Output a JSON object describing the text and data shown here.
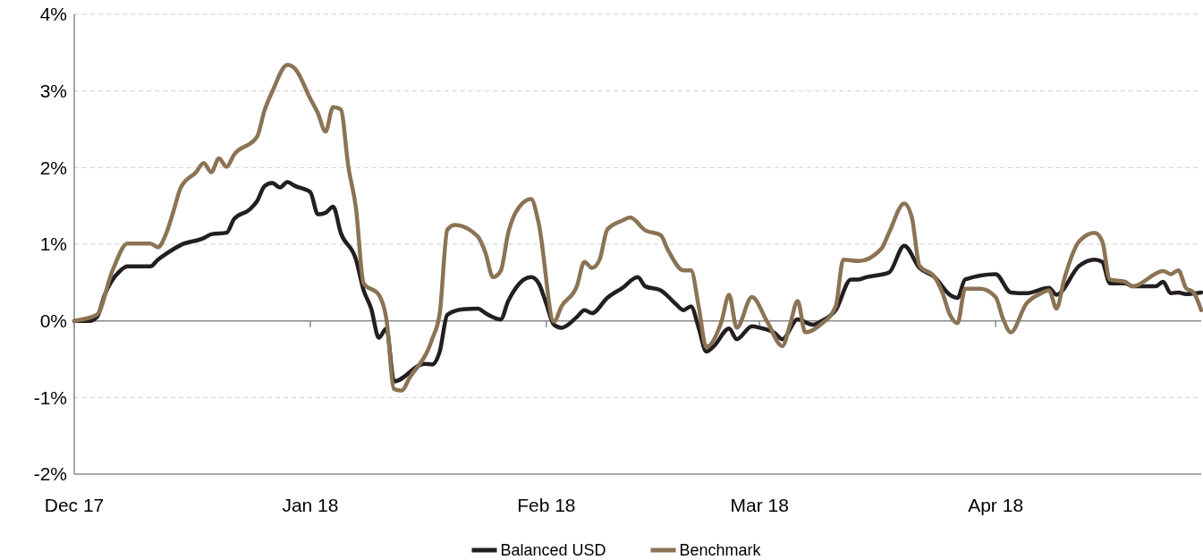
{
  "chart_data": {
    "type": "line",
    "xlim": [
      "2017-12-01",
      "2018-04-28"
    ],
    "xticks": [
      {
        "value": "2017-12-01",
        "label": "Dec 17"
      },
      {
        "value": "2018-01-01",
        "label": "Jan 18"
      },
      {
        "value": "2018-02-01",
        "label": "Feb 18"
      },
      {
        "value": "2018-03-01",
        "label": "Mar 18"
      },
      {
        "value": "2018-04-01",
        "label": "Apr 18"
      }
    ],
    "ylim": [
      -2,
      4
    ],
    "yticks": [
      {
        "value": -2,
        "label": "-2%"
      },
      {
        "value": -1,
        "label": "-1%"
      },
      {
        "value": 0,
        "label": "0%"
      },
      {
        "value": 1,
        "label": "1%"
      },
      {
        "value": 2,
        "label": "2%"
      },
      {
        "value": 3,
        "label": "3%"
      },
      {
        "value": 4,
        "label": "4%"
      }
    ],
    "grid": "y",
    "legend": "bottom",
    "marker": "none",
    "line_style": "solid",
    "series": [
      {
        "name": "Balanced USD",
        "color": "#231f20",
        "x": [
          "2017-12-01",
          "2017-12-03",
          "2017-12-04",
          "2017-12-05",
          "2017-12-07",
          "2017-12-08",
          "2017-12-11",
          "2017-12-12",
          "2017-12-13",
          "2017-12-15",
          "2017-12-18",
          "2017-12-19",
          "2017-12-21",
          "2017-12-22",
          "2017-12-24",
          "2017-12-25",
          "2017-12-26",
          "2017-12-27",
          "2017-12-28",
          "2017-12-29",
          "2017-12-30",
          "2018-01-01",
          "2018-01-02",
          "2018-01-03",
          "2018-01-04",
          "2018-01-05",
          "2018-01-07",
          "2018-01-08",
          "2018-01-09",
          "2018-01-10",
          "2018-01-11",
          "2018-01-12",
          "2018-01-16",
          "2018-01-17",
          "2018-01-18",
          "2018-01-19",
          "2018-01-21",
          "2018-01-23",
          "2018-01-24",
          "2018-01-26",
          "2018-01-27",
          "2018-01-28",
          "2018-01-30",
          "2018-01-31",
          "2018-02-01",
          "2018-02-02",
          "2018-02-03",
          "2018-02-05",
          "2018-02-06",
          "2018-02-07",
          "2018-02-09",
          "2018-02-11",
          "2018-02-13",
          "2018-02-14",
          "2018-02-16",
          "2018-02-18",
          "2018-02-19",
          "2018-02-20",
          "2018-02-21",
          "2018-02-22",
          "2018-02-23",
          "2018-02-25",
          "2018-02-26",
          "2018-02-28",
          "2018-03-01",
          "2018-03-03",
          "2018-03-04",
          "2018-03-06",
          "2018-03-08",
          "2018-03-09",
          "2018-03-11",
          "2018-03-13",
          "2018-03-14",
          "2018-03-15",
          "2018-03-18",
          "2018-03-20",
          "2018-03-22",
          "2018-03-24",
          "2018-03-26",
          "2018-03-27",
          "2018-03-28",
          "2018-04-01",
          "2018-04-03",
          "2018-04-05",
          "2018-04-08",
          "2018-04-09",
          "2018-04-12",
          "2018-04-14",
          "2018-04-15",
          "2018-04-16",
          "2018-04-18",
          "2018-04-19",
          "2018-04-22",
          "2018-04-23",
          "2018-04-24",
          "2018-04-25",
          "2018-04-26",
          "2018-04-28"
        ],
        "values": [
          0,
          0,
          0.05,
          0.34,
          0.65,
          0.71,
          0.71,
          0.8,
          0.87,
          0.99,
          1.08,
          1.13,
          1.15,
          1.33,
          1.45,
          1.56,
          1.76,
          1.8,
          1.74,
          1.81,
          1.76,
          1.68,
          1.39,
          1.41,
          1.49,
          1.15,
          0.8,
          0.4,
          0.16,
          -0.22,
          -0.1,
          -0.79,
          -0.56,
          -0.57,
          -0.4,
          0.08,
          0.15,
          0.16,
          0.1,
          0.02,
          0.26,
          0.43,
          0.57,
          0.49,
          0.22,
          -0.05,
          -0.09,
          0.05,
          0.14,
          0.1,
          0.3,
          0.43,
          0.57,
          0.45,
          0.4,
          0.22,
          0.14,
          0.19,
          -0.09,
          -0.4,
          -0.33,
          -0.1,
          -0.24,
          -0.07,
          -0.09,
          -0.16,
          -0.24,
          0.02,
          -0.05,
          -0.01,
          0.14,
          0.54,
          0.54,
          0.57,
          0.63,
          0.98,
          0.69,
          0.57,
          0.34,
          0.3,
          0.54,
          0.61,
          0.37,
          0.36,
          0.43,
          0.34,
          0.72,
          0.8,
          0.77,
          0.49,
          0.49,
          0.45,
          0.45,
          0.51,
          0.36,
          0.37,
          0.35,
          0.37
        ]
      },
      {
        "name": "Benchmark",
        "color": "#8b7355",
        "x": [
          "2017-12-01",
          "2017-12-04",
          "2017-12-06",
          "2017-12-08",
          "2017-12-11",
          "2017-12-12",
          "2017-12-13",
          "2017-12-14",
          "2017-12-15",
          "2017-12-17",
          "2017-12-18",
          "2017-12-19",
          "2017-12-20",
          "2017-12-21",
          "2017-12-22",
          "2017-12-25",
          "2017-12-26",
          "2017-12-27",
          "2017-12-29",
          "2017-12-30",
          "2018-01-01",
          "2018-01-02",
          "2018-01-03",
          "2018-01-04",
          "2018-01-05",
          "2018-01-06",
          "2018-01-07",
          "2018-01-08",
          "2018-01-10",
          "2018-01-11",
          "2018-01-12",
          "2018-01-13",
          "2018-01-14",
          "2018-01-17",
          "2018-01-18",
          "2018-01-19",
          "2018-01-20",
          "2018-01-23",
          "2018-01-24",
          "2018-01-25",
          "2018-01-26",
          "2018-01-27",
          "2018-01-28",
          "2018-01-30",
          "2018-01-31",
          "2018-02-02",
          "2018-02-03",
          "2018-02-05",
          "2018-02-06",
          "2018-02-07",
          "2018-02-08",
          "2018-02-09",
          "2018-02-11",
          "2018-02-12",
          "2018-02-14",
          "2018-02-16",
          "2018-02-17",
          "2018-02-19",
          "2018-02-20",
          "2018-02-21",
          "2018-02-22",
          "2018-02-24",
          "2018-02-25",
          "2018-02-26",
          "2018-02-28",
          "2018-03-02",
          "2018-03-04",
          "2018-03-05",
          "2018-03-06",
          "2018-03-07",
          "2018-03-09",
          "2018-03-11",
          "2018-03-12",
          "2018-03-14",
          "2018-03-17",
          "2018-03-18",
          "2018-03-20",
          "2018-03-21",
          "2018-03-22",
          "2018-03-24",
          "2018-03-25",
          "2018-03-26",
          "2018-03-27",
          "2018-03-28",
          "2018-03-30",
          "2018-04-01",
          "2018-04-02",
          "2018-04-03",
          "2018-04-05",
          "2018-04-07",
          "2018-04-08",
          "2018-04-09",
          "2018-04-10",
          "2018-04-12",
          "2018-04-14",
          "2018-04-15",
          "2018-04-16",
          "2018-04-18",
          "2018-04-19",
          "2018-04-23",
          "2018-04-24",
          "2018-04-25",
          "2018-04-26",
          "2018-04-27",
          "2018-04-28"
        ],
        "values": [
          0,
          0.08,
          0.65,
          1.01,
          1.01,
          0.96,
          1.12,
          1.42,
          1.74,
          1.94,
          2.06,
          1.94,
          2.12,
          2.01,
          2.17,
          2.4,
          2.75,
          2.99,
          3.34,
          3.29,
          2.9,
          2.71,
          2.47,
          2.79,
          2.76,
          2.01,
          1.47,
          0.49,
          0.34,
          0.02,
          -0.89,
          -0.91,
          -0.75,
          -0.24,
          0.1,
          1.19,
          1.25,
          1.1,
          0.89,
          0.57,
          0.65,
          1.15,
          1.42,
          1.59,
          1.27,
          -0.01,
          0.19,
          0.45,
          0.77,
          0.69,
          0.8,
          1.19,
          1.31,
          1.35,
          1.18,
          1.12,
          0.92,
          0.66,
          0.66,
          0.19,
          -0.34,
          -0.01,
          0.34,
          -0.09,
          0.31,
          -0.01,
          -0.33,
          -0.05,
          0.26,
          -0.15,
          -0.05,
          0.19,
          0.8,
          0.78,
          0.94,
          1.15,
          1.53,
          1.35,
          0.72,
          0.57,
          0.37,
          0.08,
          -0.03,
          0.42,
          0.42,
          0.31,
          0.02,
          -0.15,
          0.22,
          0.36,
          0.4,
          0.16,
          0.54,
          1.04,
          1.15,
          1.04,
          0.54,
          0.51,
          0.45,
          0.65,
          0.61,
          0.66,
          0.43,
          0.37,
          0.14
        ]
      }
    ]
  }
}
